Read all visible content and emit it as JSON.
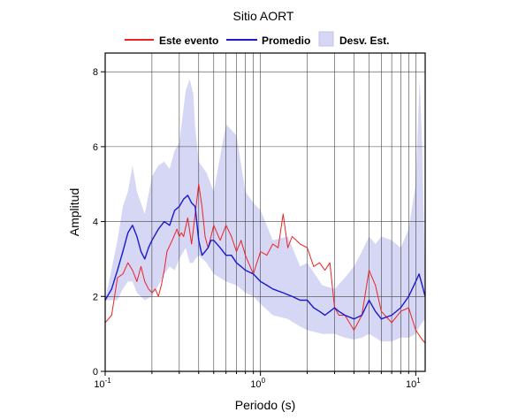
{
  "chart_data": {
    "type": "line",
    "title": "Sitio AORT",
    "xlabel": "Periodo (s)",
    "ylabel": "Amplitud",
    "xscale": "log",
    "xlim": [
      0.1,
      11.5
    ],
    "ylim": [
      0,
      8.5
    ],
    "yticks": [
      0,
      2,
      4,
      6,
      8
    ],
    "xticks": [
      {
        "base": "10",
        "exp": "-1",
        "value": 0.1
      },
      {
        "base": "10",
        "exp": "0",
        "value": 1
      },
      {
        "base": "10",
        "exp": "1",
        "value": 10
      }
    ],
    "grid": true,
    "legend_position": "top-center",
    "legend": [
      {
        "label": "Este evento",
        "kind": "line",
        "color": "#ee2222"
      },
      {
        "label": "Promedio",
        "kind": "line",
        "color": "#1a1acc"
      },
      {
        "label": "Desv. Est.",
        "kind": "band",
        "color": "#d6d6f5"
      }
    ],
    "series": [
      {
        "name": "Este evento",
        "color": "#ee2222",
        "x": [
          0.1,
          0.11,
          0.12,
          0.13,
          0.14,
          0.15,
          0.16,
          0.17,
          0.18,
          0.19,
          0.2,
          0.21,
          0.22,
          0.23,
          0.24,
          0.25,
          0.27,
          0.29,
          0.3,
          0.31,
          0.32,
          0.34,
          0.36,
          0.38,
          0.4,
          0.42,
          0.44,
          0.46,
          0.48,
          0.5,
          0.55,
          0.6,
          0.65,
          0.7,
          0.75,
          0.8,
          0.9,
          1.0,
          1.1,
          1.2,
          1.3,
          1.4,
          1.5,
          1.6,
          1.7,
          1.8,
          2.0,
          2.2,
          2.4,
          2.6,
          2.8,
          3.0,
          3.2,
          3.5,
          4.0,
          4.5,
          5.0,
          5.5,
          6.0,
          7.0,
          8.0,
          9.0,
          10.0,
          11.0,
          11.5
        ],
        "y": [
          1.3,
          1.5,
          2.5,
          2.6,
          2.9,
          2.7,
          2.4,
          2.8,
          2.4,
          2.2,
          2.1,
          2.2,
          2.0,
          2.3,
          2.7,
          3.2,
          3.5,
          3.8,
          3.6,
          3.7,
          3.6,
          4.1,
          3.4,
          4.2,
          5.0,
          4.4,
          3.6,
          3.3,
          3.6,
          3.9,
          3.5,
          3.9,
          3.6,
          3.2,
          3.5,
          3.1,
          2.6,
          3.2,
          3.1,
          3.4,
          3.3,
          4.2,
          3.3,
          3.6,
          3.5,
          3.4,
          3.3,
          2.8,
          2.9,
          2.7,
          2.9,
          1.7,
          1.5,
          1.5,
          1.1,
          1.5,
          2.7,
          2.3,
          1.6,
          1.3,
          1.6,
          1.7,
          1.1,
          0.85,
          0.75
        ]
      },
      {
        "name": "Promedio",
        "color": "#1a1acc",
        "x": [
          0.1,
          0.11,
          0.12,
          0.13,
          0.14,
          0.15,
          0.16,
          0.17,
          0.18,
          0.19,
          0.2,
          0.22,
          0.24,
          0.26,
          0.28,
          0.3,
          0.32,
          0.34,
          0.36,
          0.38,
          0.4,
          0.42,
          0.44,
          0.46,
          0.48,
          0.5,
          0.55,
          0.6,
          0.65,
          0.7,
          0.75,
          0.8,
          0.9,
          1.0,
          1.1,
          1.2,
          1.4,
          1.6,
          1.8,
          2.0,
          2.2,
          2.4,
          2.6,
          2.8,
          3.0,
          3.2,
          3.5,
          4.0,
          4.5,
          5.0,
          5.5,
          6.0,
          7.0,
          8.0,
          9.0,
          10.0,
          10.5,
          11.0,
          11.5
        ],
        "y": [
          1.9,
          2.2,
          2.7,
          3.2,
          3.7,
          3.9,
          3.6,
          3.2,
          3.0,
          3.3,
          3.5,
          3.8,
          4.0,
          3.9,
          4.3,
          4.4,
          4.6,
          4.7,
          4.5,
          4.4,
          3.5,
          3.1,
          3.2,
          3.3,
          3.5,
          3.5,
          3.3,
          3.1,
          3.1,
          2.9,
          2.8,
          2.7,
          2.6,
          2.4,
          2.3,
          2.2,
          2.1,
          2.0,
          1.9,
          1.9,
          1.7,
          1.6,
          1.5,
          1.6,
          1.7,
          1.6,
          1.5,
          1.4,
          1.5,
          1.9,
          1.6,
          1.4,
          1.5,
          1.7,
          2.0,
          2.4,
          2.6,
          2.3,
          2.0
        ]
      }
    ],
    "band": {
      "name": "Desv. Est.",
      "color": "#d6d6f5",
      "x": [
        0.1,
        0.12,
        0.13,
        0.14,
        0.15,
        0.16,
        0.18,
        0.2,
        0.22,
        0.24,
        0.26,
        0.28,
        0.3,
        0.33,
        0.35,
        0.37,
        0.38,
        0.4,
        0.45,
        0.5,
        0.6,
        0.7,
        0.8,
        0.9,
        1.0,
        1.2,
        1.5,
        1.8,
        2.0,
        2.5,
        3.0,
        3.5,
        4.0,
        4.5,
        5.0,
        5.5,
        6.0,
        7.0,
        8.0,
        9.0,
        10.0,
        10.3,
        10.6,
        11.0,
        11.5
      ],
      "upper": [
        1.9,
        3.5,
        4.4,
        4.8,
        5.5,
        4.8,
        4.2,
        5.2,
        5.5,
        5.6,
        5.4,
        5.9,
        6.1,
        7.5,
        7.8,
        7.4,
        6.5,
        5.6,
        5.3,
        4.8,
        6.6,
        6.3,
        4.8,
        4.5,
        4.3,
        3.5,
        3.6,
        2.8,
        2.9,
        2.3,
        2.2,
        2.5,
        2.8,
        3.2,
        3.6,
        3.4,
        3.6,
        3.5,
        3.3,
        3.8,
        5.0,
        6.5,
        7.8,
        6.0,
        2.4
      ],
      "lower": [
        1.9,
        1.9,
        2.2,
        2.4,
        2.4,
        2.1,
        1.9,
        2.0,
        2.3,
        2.6,
        2.8,
        2.7,
        3.0,
        3.3,
        2.9,
        2.9,
        3.0,
        3.1,
        2.9,
        2.6,
        2.4,
        2.3,
        2.1,
        2.0,
        1.8,
        1.5,
        1.4,
        1.2,
        1.1,
        1.0,
        1.0,
        0.9,
        0.85,
        0.9,
        1.0,
        0.9,
        0.8,
        0.8,
        0.9,
        0.9,
        1.0,
        1.1,
        1.2,
        1.3,
        1.4
      ]
    }
  }
}
